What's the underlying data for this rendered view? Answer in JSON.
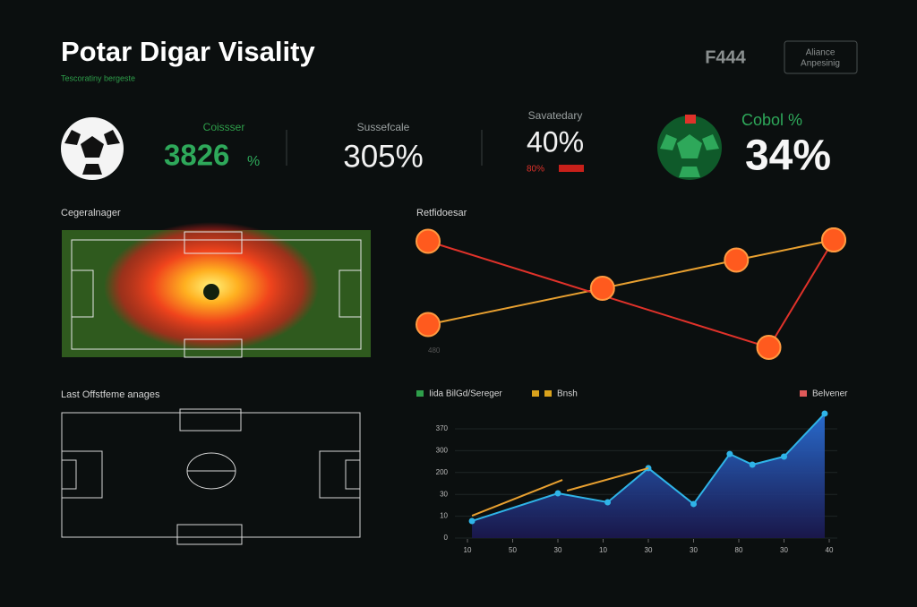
{
  "header": {
    "title": "Potar Digar Visality",
    "subtitle": "Tescoratiny bergeste",
    "logo": "F444",
    "button": [
      "Aliance",
      "Anpesinig"
    ]
  },
  "kpis": [
    {
      "label": "Coissser",
      "value": "3826",
      "unit": "%"
    },
    {
      "label": "Sussefcale",
      "value": "305%"
    },
    {
      "label": "Savatedary",
      "value": "40%",
      "note": "80%"
    },
    {
      "label": "Cobol %",
      "value": "34%"
    }
  ],
  "panels": {
    "heatmap": "Cegeralnager",
    "pitch": "Last Offstfeme anages"
  },
  "chart_data": [
    {
      "type": "line",
      "title": "Retfidoesar",
      "annotation": "480",
      "xlim": [
        0,
        10
      ],
      "ylim": [
        0,
        10
      ],
      "series": [
        {
          "color": "#e8a030",
          "x": [
            0,
            4.3,
            7.6,
            10
          ],
          "values": [
            2.5,
            5.2,
            7.3,
            8.8
          ]
        },
        {
          "color": "#e0322a",
          "x": [
            0,
            8.4,
            10
          ],
          "values": [
            8.7,
            0.8,
            8.8
          ]
        }
      ]
    },
    {
      "type": "area",
      "legend": [
        {
          "name": "Iida BilGd/Sereger",
          "color": "#2e9e4a"
        },
        {
          "name": "Bnsh",
          "color": "#d9a21c"
        },
        {
          "name": "Belvener",
          "color": "#e05a5a"
        }
      ],
      "xlim": [
        0,
        8
      ],
      "xticks": [
        {
          "value": 0,
          "label": "10"
        },
        {
          "value": 1,
          "label": "50"
        },
        {
          "value": 2,
          "label": "30"
        },
        {
          "value": 3,
          "label": "10"
        },
        {
          "value": 4,
          "label": "30"
        },
        {
          "value": 5,
          "label": "30"
        },
        {
          "value": 6,
          "label": "80"
        },
        {
          "value": 7,
          "label": "30"
        },
        {
          "value": 8,
          "label": "40"
        }
      ],
      "ylim": [
        0,
        58
      ],
      "yticks": [
        0,
        {
          "value": 10,
          "label": "10"
        },
        {
          "value": 20,
          "label": "30"
        },
        {
          "value": 30,
          "label": "200"
        },
        {
          "value": 40,
          "label": "300"
        },
        {
          "value": 50,
          "label": "370"
        }
      ],
      "grid": true,
      "series": [
        {
          "color": "#2fb4e8",
          "area": true,
          "x": [
            0.1,
            2.0,
            3.1,
            4.0,
            5.0,
            5.8,
            6.3,
            7.0,
            7.9
          ],
          "values": [
            7.8,
            20.5,
            16.4,
            32,
            15.6,
            38.5,
            33.6,
            37.3,
            57
          ]
        },
        {
          "color": "#e8a030",
          "x": [
            0.1,
            2.1,
            null,
            2.2,
            4.0
          ],
          "values": [
            10.2,
            26.6,
            null,
            21.7,
            32
          ]
        }
      ]
    }
  ]
}
